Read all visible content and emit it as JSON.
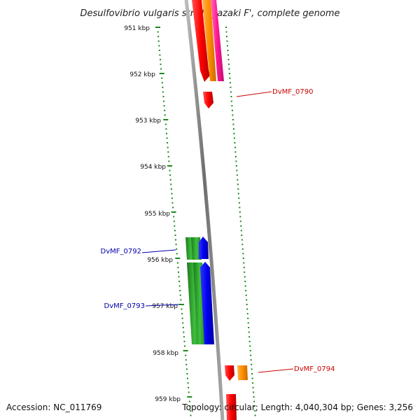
{
  "title": "Desulfovibrio vulgaris str. 'Miyazaki F', complete genome",
  "footer": {
    "accession": "Accession: NC_011769",
    "topology": "Topology: circular; Length: 4,040,304 bp; Genes: 3,256"
  },
  "ticks": [
    "951 kbp",
    "952 kbp",
    "953 kbp",
    "954 kbp",
    "955 kbp",
    "956 kbp",
    "957 kbp",
    "958 kbp",
    "959 kbp"
  ],
  "gene_labels": [
    {
      "id": "DvMF_0790",
      "color": "#cc0000"
    },
    {
      "id": "DvMF_0792",
      "color": "#0000aa"
    },
    {
      "id": "DvMF_0793",
      "color": "#0000aa"
    },
    {
      "id": "DvMF_0794",
      "color": "#cc0000"
    }
  ],
  "colors": {
    "backbone": "#8a8a8a",
    "tick_marks": "#1a8a1a",
    "red_gene": "#ff0000",
    "orange_gene": "#ff8c00",
    "magenta_gene": "#ff1493",
    "green_gene": "#2fa82f",
    "blue_gene": "#0000ee"
  }
}
